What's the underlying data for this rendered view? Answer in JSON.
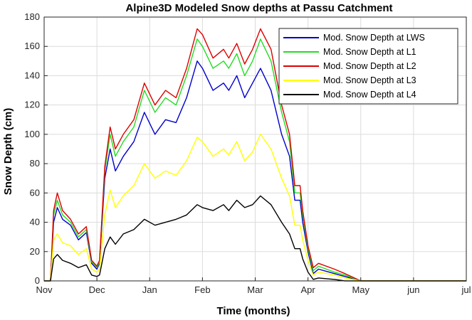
{
  "chart_data": {
    "type": "line",
    "title": "Alpine3D Modeled Snow depths at Passu Catchment",
    "xlabel": "Time (months)",
    "ylabel": "Snow Depth (cm)",
    "x_ticks": [
      "Nov",
      "Dec",
      "Jan",
      "Feb",
      "Mar",
      "Apr",
      "May",
      "jun",
      "jul"
    ],
    "y_ticks": [
      0,
      20,
      40,
      60,
      80,
      100,
      120,
      140,
      160,
      180
    ],
    "xlim": [
      0,
      8
    ],
    "ylim": [
      0,
      180
    ],
    "grid": true,
    "legend_position": "top-right",
    "x_unit": "months since Nov",
    "series": [
      {
        "name": "Mod. Snow Depth at LWS",
        "color": "#0000cc",
        "x": [
          0,
          0.12,
          0.18,
          0.25,
          0.35,
          0.5,
          0.65,
          0.8,
          0.9,
          1.0,
          1.05,
          1.15,
          1.25,
          1.35,
          1.5,
          1.7,
          1.9,
          2.1,
          2.3,
          2.5,
          2.7,
          2.9,
          3.0,
          3.2,
          3.4,
          3.5,
          3.65,
          3.8,
          3.95,
          4.1,
          4.3,
          4.5,
          4.65,
          4.75,
          4.85,
          4.9,
          5.0,
          5.1,
          5.2,
          5.5,
          5.7,
          6.0,
          6.5,
          7.0,
          7.3,
          8.0
        ],
        "y": [
          0,
          0,
          40,
          50,
          42,
          38,
          28,
          33,
          12,
          8,
          12,
          70,
          90,
          75,
          85,
          95,
          115,
          100,
          110,
          108,
          125,
          150,
          145,
          130,
          135,
          130,
          140,
          125,
          135,
          145,
          130,
          100,
          85,
          55,
          55,
          40,
          20,
          5,
          8,
          5,
          3,
          0,
          0,
          0,
          0,
          0
        ]
      },
      {
        "name": "Mod. Snow Depth at L1",
        "color": "#22dd22",
        "x": [
          0,
          0.12,
          0.18,
          0.25,
          0.35,
          0.5,
          0.65,
          0.8,
          0.9,
          1.0,
          1.05,
          1.15,
          1.25,
          1.35,
          1.5,
          1.7,
          1.9,
          2.1,
          2.3,
          2.5,
          2.7,
          2.9,
          3.0,
          3.2,
          3.4,
          3.5,
          3.65,
          3.8,
          3.95,
          4.1,
          4.3,
          4.5,
          4.65,
          4.75,
          4.85,
          4.9,
          5.0,
          5.1,
          5.2,
          5.5,
          5.7,
          6.0,
          6.5,
          7.0,
          7.3,
          8.0
        ],
        "y": [
          0,
          0,
          45,
          55,
          45,
          40,
          30,
          35,
          13,
          9,
          13,
          75,
          100,
          85,
          95,
          105,
          130,
          115,
          125,
          120,
          140,
          165,
          160,
          145,
          150,
          145,
          155,
          140,
          150,
          165,
          150,
          115,
          95,
          60,
          60,
          45,
          22,
          7,
          10,
          6,
          4,
          0,
          0,
          0,
          0,
          0
        ]
      },
      {
        "name": "Mod. Snow Depth at L2",
        "color": "#dd0000",
        "x": [
          0,
          0.12,
          0.18,
          0.25,
          0.35,
          0.5,
          0.65,
          0.8,
          0.9,
          1.0,
          1.05,
          1.15,
          1.25,
          1.35,
          1.5,
          1.7,
          1.9,
          2.1,
          2.3,
          2.5,
          2.7,
          2.9,
          3.0,
          3.2,
          3.4,
          3.5,
          3.65,
          3.8,
          3.95,
          4.1,
          4.3,
          4.5,
          4.65,
          4.75,
          4.85,
          4.9,
          5.0,
          5.1,
          5.2,
          5.5,
          5.7,
          6.0,
          6.5,
          7.0,
          7.3,
          8.0
        ],
        "y": [
          0,
          0,
          48,
          60,
          48,
          42,
          32,
          37,
          14,
          10,
          14,
          78,
          105,
          90,
          100,
          110,
          135,
          120,
          130,
          125,
          145,
          172,
          168,
          152,
          158,
          152,
          162,
          148,
          158,
          172,
          158,
          120,
          100,
          65,
          65,
          48,
          24,
          9,
          12,
          8,
          5,
          0,
          0,
          0,
          0,
          0
        ]
      },
      {
        "name": "Mod. Snow Depth at L3",
        "color": "#ffff00",
        "x": [
          0,
          0.12,
          0.18,
          0.25,
          0.35,
          0.5,
          0.65,
          0.8,
          0.9,
          1.0,
          1.05,
          1.15,
          1.25,
          1.35,
          1.5,
          1.7,
          1.9,
          2.1,
          2.3,
          2.5,
          2.7,
          2.9,
          3.0,
          3.2,
          3.4,
          3.5,
          3.65,
          3.8,
          3.95,
          4.1,
          4.3,
          4.5,
          4.65,
          4.75,
          4.85,
          4.9,
          5.0,
          5.1,
          5.2,
          5.5,
          5.7,
          6.0,
          6.5,
          7.0,
          7.3,
          8.0
        ],
        "y": [
          0,
          0,
          28,
          32,
          26,
          24,
          18,
          22,
          8,
          6,
          8,
          45,
          62,
          50,
          58,
          65,
          80,
          70,
          75,
          72,
          82,
          98,
          95,
          85,
          90,
          86,
          95,
          82,
          88,
          100,
          90,
          70,
          58,
          38,
          38,
          28,
          14,
          4,
          6,
          4,
          2,
          0,
          0,
          0,
          0,
          0
        ]
      },
      {
        "name": "Mod. Snow Depth at L4",
        "color": "#000000",
        "x": [
          0,
          0.12,
          0.18,
          0.25,
          0.35,
          0.5,
          0.65,
          0.8,
          0.9,
          1.0,
          1.05,
          1.15,
          1.25,
          1.35,
          1.5,
          1.7,
          1.9,
          2.1,
          2.3,
          2.5,
          2.7,
          2.9,
          3.0,
          3.2,
          3.4,
          3.5,
          3.65,
          3.8,
          3.95,
          4.1,
          4.3,
          4.5,
          4.65,
          4.75,
          4.85,
          4.9,
          5.0,
          5.1,
          5.2,
          5.5,
          5.7,
          6.0,
          6.5,
          7.0,
          7.3,
          8.0
        ],
        "y": [
          0,
          0,
          15,
          18,
          14,
          12,
          9,
          11,
          4,
          3,
          4,
          22,
          30,
          25,
          32,
          35,
          42,
          38,
          40,
          42,
          45,
          52,
          50,
          48,
          52,
          48,
          55,
          50,
          52,
          58,
          52,
          40,
          32,
          22,
          22,
          15,
          6,
          1,
          2,
          1,
          0,
          0,
          0,
          0,
          0,
          0
        ]
      }
    ]
  }
}
